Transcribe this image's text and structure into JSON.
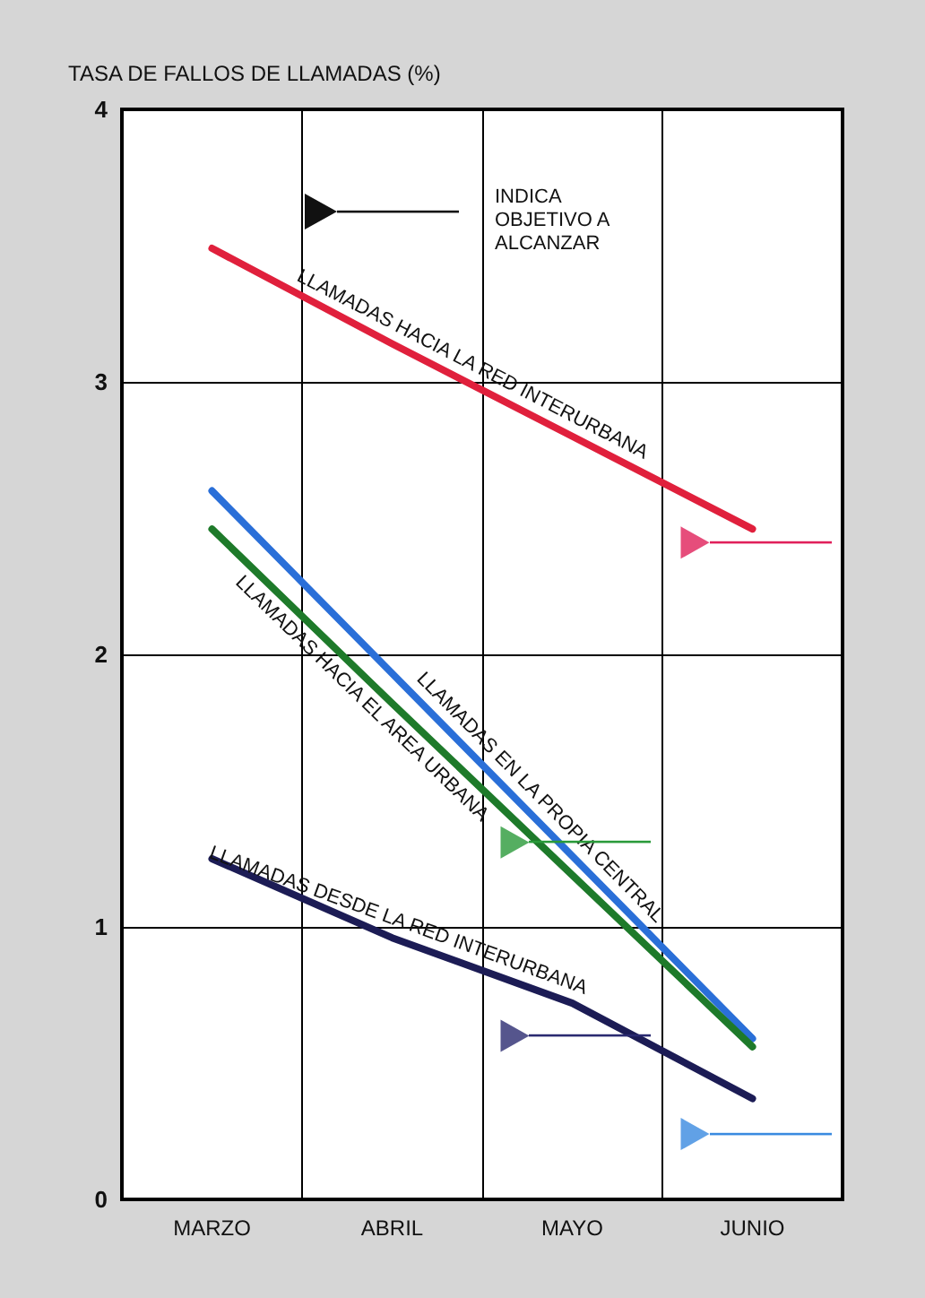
{
  "chart_data": {
    "type": "line",
    "ylabel": "TASA DE FALLOS DE LLAMADAS (%)",
    "categories": [
      "MARZO",
      "ABRIL",
      "MAYO",
      "JUNIO"
    ],
    "series": [
      {
        "name": "LLAMADAS HACIA LA RED INTERURBANA",
        "color": "#e0203c",
        "values": [
          3.49,
          3.14,
          2.8,
          2.46
        ]
      },
      {
        "name": "LLAMADAS EN LA PROPIA CENTRAL",
        "color": "#2a6fd8",
        "values": [
          2.6,
          1.93,
          1.26,
          0.59
        ]
      },
      {
        "name": "LLAMADAS HACIA EL AREA URBANA",
        "color": "#1e7a2a",
        "values": [
          2.46,
          1.82,
          1.19,
          0.56
        ]
      },
      {
        "name": "LLAMADAS DESDE LA RED INTERURBANA",
        "color": "#1c1c55",
        "values": [
          1.25,
          0.96,
          0.72,
          0.37
        ]
      },
      {
        "type": "scatter",
        "marker": "triangle",
        "color": "#e0205a",
        "x": [
          "JUNIO"
        ],
        "values": [
          2.41
        ]
      },
      {
        "type": "scatter",
        "marker": "triangle",
        "color": "#2a9a3a",
        "x": [
          "MAYO"
        ],
        "values": [
          1.31
        ]
      },
      {
        "type": "scatter",
        "marker": "triangle",
        "color": "#2a2a70",
        "x": [
          "MAYO"
        ],
        "values": [
          0.6
        ]
      },
      {
        "type": "scatter",
        "marker": "triangle",
        "color": "#3a8ae0",
        "x": [
          "JUNIO"
        ],
        "values": [
          0.24
        ]
      }
    ],
    "ylim": [
      0,
      4
    ],
    "yticks": [
      0,
      1,
      2,
      3,
      4
    ],
    "grid": true,
    "legend": false,
    "annotations": [
      "INDICA OBJETIVO A ALCANZAR"
    ]
  }
}
